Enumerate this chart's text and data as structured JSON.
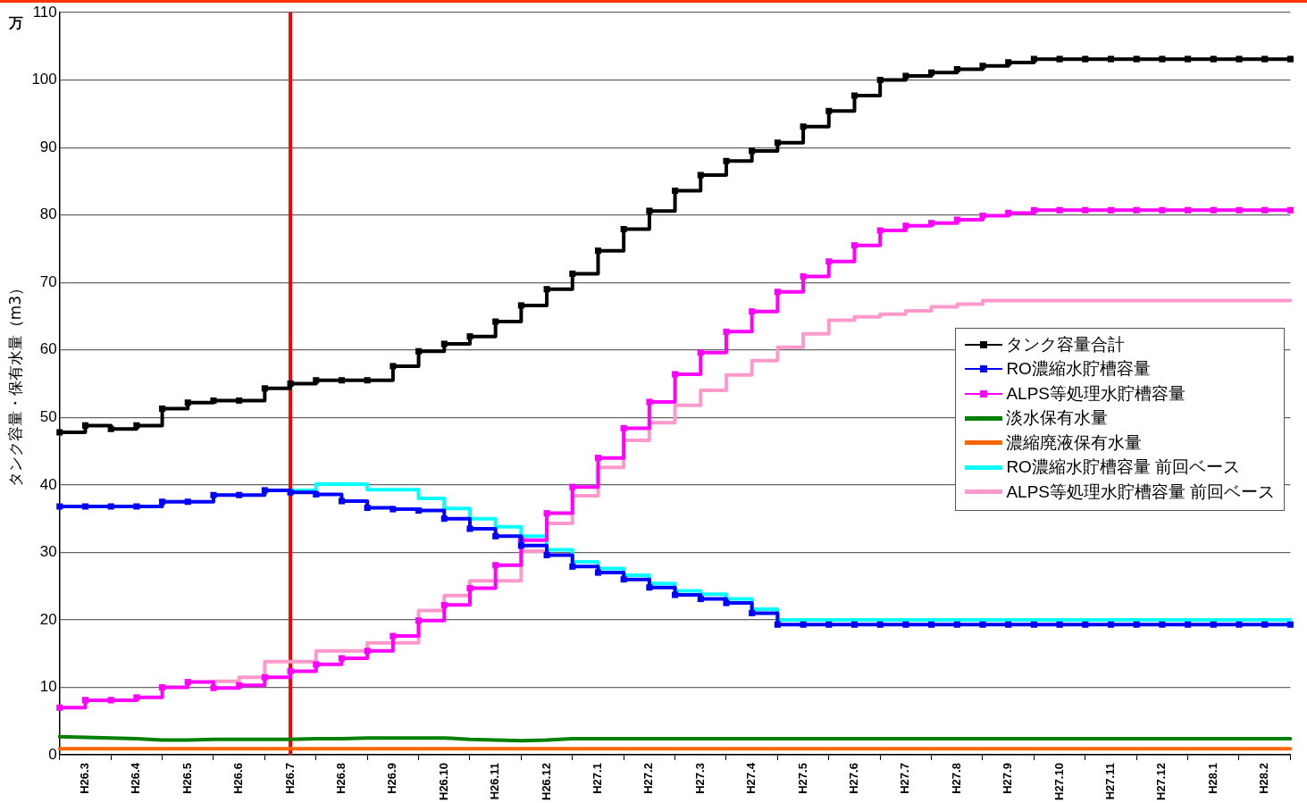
{
  "chart_data": {
    "type": "step",
    "ylabel": "タンク容量・保有水量（m3）",
    "annotations": [
      "万"
    ],
    "categories": [
      null,
      "H26.3",
      null,
      "H26.4",
      null,
      "H26.5",
      null,
      "H26.6",
      null,
      "H26.7",
      null,
      "H26.8",
      null,
      "H26.9",
      null,
      "H26.10",
      null,
      "H26.11",
      null,
      "H26.12",
      null,
      "H27.1",
      null,
      "H27.2",
      null,
      "H27.3",
      null,
      "H27.4",
      null,
      "H27.5",
      null,
      "H27.6",
      null,
      "H27.7",
      null,
      "H27.8",
      null,
      "H27.9",
      null,
      "H27.10",
      null,
      "H27.11",
      null,
      "H27.12",
      null,
      "H28.1",
      null,
      "H28.2",
      null
    ],
    "series": [
      {
        "name": "タンク容量合計",
        "color": "#000000",
        "marker": "square",
        "values": [
          47.8,
          48.8,
          48.3,
          48.8,
          51.3,
          52.2,
          52.5,
          52.5,
          54.3,
          55.0,
          55.5,
          55.5,
          55.5,
          57.6,
          59.8,
          60.9,
          62.0,
          64.2,
          66.6,
          69.0,
          71.3,
          74.7,
          77.9,
          80.6,
          83.6,
          85.9,
          88.0,
          89.5,
          90.7,
          93.1,
          95.4,
          97.7,
          100.0,
          100.6,
          101.1,
          101.6,
          102.1,
          102.6,
          103.1,
          103.1,
          103.1,
          103.1,
          103.1,
          103.1,
          103.1,
          103.1,
          103.1,
          103.1,
          103.1
        ]
      },
      {
        "name": "RO濃縮水貯槽容量",
        "color": "#0000ff",
        "marker": "square",
        "values": [
          36.8,
          36.8,
          36.8,
          36.8,
          37.5,
          37.5,
          38.5,
          38.5,
          39.2,
          38.9,
          38.6,
          37.6,
          36.6,
          36.4,
          36.2,
          35.0,
          33.5,
          32.4,
          31.0,
          29.6,
          27.9,
          27.0,
          26.0,
          24.8,
          23.7,
          23.1,
          22.5,
          21.0,
          19.3,
          19.3,
          19.3,
          19.3,
          19.3,
          19.3,
          19.3,
          19.3,
          19.3,
          19.3,
          19.3,
          19.3,
          19.3,
          19.3,
          19.3,
          19.3,
          19.3,
          19.3,
          19.3,
          19.3,
          19.3
        ]
      },
      {
        "name": "ALPS等処理水貯槽容量",
        "color": "#ff00ff",
        "marker": "square",
        "values": [
          7.0,
          8.1,
          8.1,
          8.5,
          10.0,
          10.8,
          9.9,
          10.3,
          11.5,
          12.4,
          13.4,
          14.3,
          15.4,
          17.6,
          19.9,
          22.2,
          24.7,
          28.1,
          31.8,
          35.8,
          39.7,
          44.0,
          48.4,
          52.3,
          56.4,
          59.6,
          62.7,
          65.7,
          68.6,
          70.9,
          73.1,
          75.5,
          77.7,
          78.4,
          78.8,
          79.3,
          79.9,
          80.3,
          80.7,
          80.7,
          80.7,
          80.7,
          80.7,
          80.7,
          80.7,
          80.7,
          80.7,
          80.7,
          80.7
        ]
      },
      {
        "name": "淡水保有水量",
        "color": "#008000",
        "type": "line",
        "marker": "none",
        "values": [
          2.7,
          2.6,
          2.5,
          2.4,
          2.2,
          2.2,
          2.3,
          2.3,
          2.3,
          2.3,
          2.4,
          2.4,
          2.5,
          2.5,
          2.5,
          2.5,
          2.3,
          2.2,
          2.1,
          2.2,
          2.4,
          2.4,
          2.4,
          2.4,
          2.4,
          2.4,
          2.4,
          2.4,
          2.4,
          2.4,
          2.4,
          2.4,
          2.4,
          2.4,
          2.4,
          2.4,
          2.4,
          2.4,
          2.4,
          2.4,
          2.4,
          2.4,
          2.4,
          2.4,
          2.4,
          2.4,
          2.4,
          2.4,
          2.4
        ]
      },
      {
        "name": "濃縮廃液保有水量",
        "color": "#ff6600",
        "type": "line",
        "marker": "none",
        "values": [
          0.9,
          0.9,
          0.9,
          0.9,
          0.9,
          0.9,
          0.9,
          0.9,
          0.9,
          0.9,
          0.9,
          0.9,
          0.9,
          0.9,
          0.9,
          0.9,
          0.9,
          0.9,
          0.9,
          0.9,
          0.9,
          0.9,
          0.9,
          0.9,
          0.9,
          0.9,
          0.9,
          0.9,
          0.9,
          0.9,
          0.9,
          0.9,
          0.9,
          0.9,
          0.9,
          0.9,
          0.9,
          0.9,
          0.9,
          0.9,
          0.9,
          0.9,
          0.9,
          0.9,
          0.9,
          0.9,
          0.9,
          0.9,
          0.9
        ]
      },
      {
        "name": "RO濃縮水貯槽容量 前回ベース",
        "color": "#00ffff",
        "marker": "none",
        "values": [
          null,
          null,
          null,
          null,
          null,
          null,
          null,
          null,
          null,
          39.2,
          40.1,
          40.1,
          39.3,
          39.3,
          38.0,
          36.5,
          35.0,
          33.8,
          32.4,
          30.4,
          28.6,
          27.6,
          26.6,
          25.4,
          24.3,
          23.8,
          23.1,
          21.6,
          20.0,
          20.0,
          20.0,
          20.0,
          20.0,
          20.0,
          20.0,
          20.0,
          20.0,
          20.0,
          20.0,
          20.0,
          20.0,
          20.0,
          20.0,
          20.0,
          20.0,
          20.0,
          20.0,
          20.0,
          20.0
        ]
      },
      {
        "name": "ALPS等処理水貯槽容量 前回ベース",
        "color": "#ff99cc",
        "marker": "none",
        "values": [
          null,
          null,
          null,
          null,
          null,
          null,
          10.9,
          11.5,
          13.8,
          13.8,
          15.4,
          15.4,
          16.6,
          16.6,
          21.4,
          23.6,
          25.8,
          25.8,
          30.2,
          34.3,
          38.4,
          42.6,
          46.6,
          49.2,
          51.8,
          54.0,
          56.3,
          58.4,
          60.4,
          62.4,
          64.4,
          64.9,
          65.3,
          65.8,
          66.4,
          66.8,
          67.3,
          67.3,
          67.3,
          67.3,
          67.3,
          67.3,
          67.3,
          67.3,
          67.3,
          67.3,
          67.3,
          67.3,
          67.3
        ]
      }
    ],
    "ylim": [
      0,
      110
    ],
    "yticks": [
      0,
      10,
      20,
      30,
      40,
      50,
      60,
      70,
      80,
      90,
      100,
      110
    ],
    "ref_lines": [
      {
        "axis": "x",
        "value": "H26.7",
        "color": "#ff0000"
      }
    ],
    "grid": "y",
    "legend": "right"
  }
}
